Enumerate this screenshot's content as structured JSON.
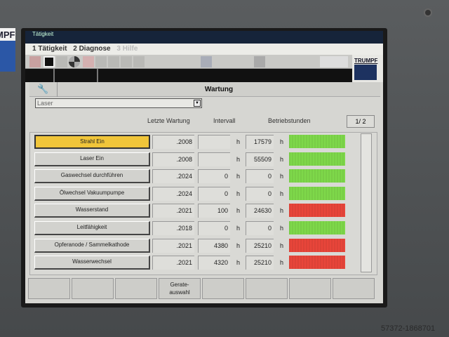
{
  "titlebar": {
    "text": "Tätigkeit"
  },
  "menu": [
    "1 Tätigkeit",
    "2 Diagnose",
    "3 Hilfe"
  ],
  "logo": {
    "text": "TRUMPF"
  },
  "bezel_logo": "MPF",
  "header": {
    "title": "Wartung",
    "icon": "wrench-icon"
  },
  "dropdown": {
    "value": "Laser"
  },
  "columns": {
    "last": "Letzte Wartung",
    "interval": "Intervall",
    "hours": "Betriebstunden"
  },
  "page": "1/ 2",
  "unit": "h",
  "colors": {
    "ok": "#7ed84a",
    "due": "#e8453a",
    "active": "#f0c53a"
  },
  "rows": [
    {
      "label": "Strahl Ein",
      "date": ".2008",
      "interval": "",
      "hours": "17579",
      "status": "ok",
      "active": true
    },
    {
      "label": "Laser Ein",
      "date": ".2008",
      "interval": "",
      "hours": "55509",
      "status": "ok"
    },
    {
      "label": "Gaswechsel durchführen",
      "date": ".2024",
      "interval": "0",
      "hours": "0",
      "status": "ok"
    },
    {
      "label": "Ölwechsel Vakuumpumpe",
      "date": ".2024",
      "interval": "0",
      "hours": "0",
      "status": "ok"
    },
    {
      "label": "Wasserstand",
      "date": ".2021",
      "interval": "100",
      "hours": "24630",
      "status": "due"
    },
    {
      "label": "Leitfähigkeit",
      "date": ".2018",
      "interval": "0",
      "hours": "0",
      "status": "ok"
    },
    {
      "label": "Opferanode / Sammelkathode",
      "date": ".2021",
      "interval": "4380",
      "hours": "25210",
      "status": "due"
    },
    {
      "label": "Wasserwechsel",
      "date": ".2021",
      "interval": "4320",
      "hours": "25210",
      "status": "due"
    }
  ],
  "softkeys": [
    "",
    "",
    "",
    "Gerate-\nauswahl",
    "",
    "",
    "",
    ""
  ],
  "watermark": "57372-1868701"
}
